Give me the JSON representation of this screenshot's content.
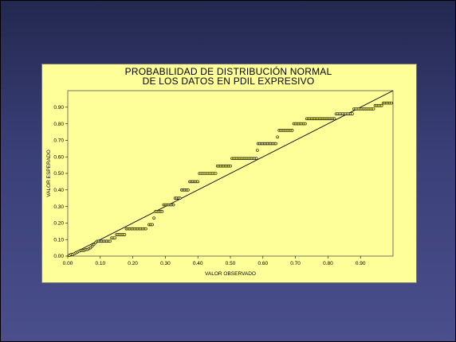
{
  "chart_data": {
    "type": "scatter",
    "title": "PROBABILIDAD DE DISTRIBUCIÓN NORMAL",
    "subtitle": "DE LOS DATOS EN PDIL EXPRESIVO",
    "xlabel": "VALOR OBSERVADO",
    "ylabel": "VALOR ESPERADO",
    "xlim": [
      0,
      1
    ],
    "ylim": [
      0,
      1
    ],
    "x_ticks": [
      "0.00",
      "0.10",
      "0.20",
      "0.30",
      "0.40",
      "0.50",
      "0.60",
      "0.70",
      "0.80",
      "0.90"
    ],
    "y_ticks": [
      "0.00",
      "0.10",
      "0.20",
      "0.30",
      "0.40",
      "0.50",
      "0.60",
      "0.70",
      "0.80",
      "0.90"
    ],
    "reference_line": {
      "from": [
        0,
        0
      ],
      "to": [
        1,
        1
      ]
    },
    "grid": false,
    "marker_color": "#ffff66",
    "background_color": "#ffff99",
    "points": [
      [
        0.005,
        0.005
      ],
      [
        0.01,
        0.01
      ],
      [
        0.015,
        0.01
      ],
      [
        0.02,
        0.015
      ],
      [
        0.025,
        0.02
      ],
      [
        0.03,
        0.025
      ],
      [
        0.035,
        0.03
      ],
      [
        0.04,
        0.035
      ],
      [
        0.045,
        0.035
      ],
      [
        0.05,
        0.035
      ],
      [
        0.055,
        0.04
      ],
      [
        0.06,
        0.04
      ],
      [
        0.065,
        0.045
      ],
      [
        0.07,
        0.05
      ],
      [
        0.075,
        0.06
      ],
      [
        0.08,
        0.07
      ],
      [
        0.085,
        0.08
      ],
      [
        0.09,
        0.09
      ],
      [
        0.095,
        0.09
      ],
      [
        0.1,
        0.09
      ],
      [
        0.105,
        0.09
      ],
      [
        0.11,
        0.09
      ],
      [
        0.115,
        0.09
      ],
      [
        0.12,
        0.09
      ],
      [
        0.125,
        0.09
      ],
      [
        0.13,
        0.09
      ],
      [
        0.135,
        0.11
      ],
      [
        0.14,
        0.11
      ],
      [
        0.145,
        0.11
      ],
      [
        0.15,
        0.13
      ],
      [
        0.155,
        0.13
      ],
      [
        0.16,
        0.13
      ],
      [
        0.165,
        0.13
      ],
      [
        0.17,
        0.13
      ],
      [
        0.175,
        0.13
      ],
      [
        0.18,
        0.165
      ],
      [
        0.185,
        0.165
      ],
      [
        0.19,
        0.165
      ],
      [
        0.195,
        0.165
      ],
      [
        0.2,
        0.165
      ],
      [
        0.205,
        0.165
      ],
      [
        0.21,
        0.165
      ],
      [
        0.215,
        0.165
      ],
      [
        0.22,
        0.165
      ],
      [
        0.225,
        0.165
      ],
      [
        0.23,
        0.165
      ],
      [
        0.235,
        0.165
      ],
      [
        0.24,
        0.165
      ],
      [
        0.25,
        0.19
      ],
      [
        0.255,
        0.19
      ],
      [
        0.26,
        0.19
      ],
      [
        0.265,
        0.23
      ],
      [
        0.27,
        0.27
      ],
      [
        0.275,
        0.27
      ],
      [
        0.28,
        0.27
      ],
      [
        0.285,
        0.27
      ],
      [
        0.29,
        0.27
      ],
      [
        0.295,
        0.31
      ],
      [
        0.3,
        0.31
      ],
      [
        0.305,
        0.31
      ],
      [
        0.31,
        0.31
      ],
      [
        0.315,
        0.31
      ],
      [
        0.32,
        0.31
      ],
      [
        0.325,
        0.31
      ],
      [
        0.33,
        0.35
      ],
      [
        0.335,
        0.35
      ],
      [
        0.34,
        0.35
      ],
      [
        0.345,
        0.35
      ],
      [
        0.35,
        0.4
      ],
      [
        0.355,
        0.4
      ],
      [
        0.36,
        0.4
      ],
      [
        0.365,
        0.4
      ],
      [
        0.37,
        0.4
      ],
      [
        0.375,
        0.45
      ],
      [
        0.38,
        0.45
      ],
      [
        0.385,
        0.45
      ],
      [
        0.39,
        0.45
      ],
      [
        0.395,
        0.45
      ],
      [
        0.4,
        0.45
      ],
      [
        0.405,
        0.5
      ],
      [
        0.41,
        0.5
      ],
      [
        0.415,
        0.5
      ],
      [
        0.42,
        0.5
      ],
      [
        0.425,
        0.5
      ],
      [
        0.43,
        0.5
      ],
      [
        0.435,
        0.5
      ],
      [
        0.44,
        0.5
      ],
      [
        0.445,
        0.5
      ],
      [
        0.45,
        0.5
      ],
      [
        0.455,
        0.5
      ],
      [
        0.46,
        0.545
      ],
      [
        0.465,
        0.545
      ],
      [
        0.47,
        0.545
      ],
      [
        0.475,
        0.545
      ],
      [
        0.48,
        0.545
      ],
      [
        0.485,
        0.545
      ],
      [
        0.49,
        0.545
      ],
      [
        0.495,
        0.545
      ],
      [
        0.5,
        0.545
      ],
      [
        0.505,
        0.59
      ],
      [
        0.51,
        0.59
      ],
      [
        0.515,
        0.59
      ],
      [
        0.52,
        0.59
      ],
      [
        0.525,
        0.59
      ],
      [
        0.53,
        0.59
      ],
      [
        0.535,
        0.59
      ],
      [
        0.54,
        0.59
      ],
      [
        0.545,
        0.59
      ],
      [
        0.55,
        0.59
      ],
      [
        0.555,
        0.59
      ],
      [
        0.56,
        0.59
      ],
      [
        0.565,
        0.59
      ],
      [
        0.57,
        0.59
      ],
      [
        0.575,
        0.59
      ],
      [
        0.58,
        0.59
      ],
      [
        0.583,
        0.64
      ],
      [
        0.585,
        0.68
      ],
      [
        0.59,
        0.68
      ],
      [
        0.595,
        0.68
      ],
      [
        0.6,
        0.68
      ],
      [
        0.605,
        0.68
      ],
      [
        0.61,
        0.68
      ],
      [
        0.615,
        0.68
      ],
      [
        0.62,
        0.68
      ],
      [
        0.625,
        0.68
      ],
      [
        0.63,
        0.68
      ],
      [
        0.635,
        0.68
      ],
      [
        0.64,
        0.68
      ],
      [
        0.645,
        0.72
      ],
      [
        0.65,
        0.76
      ],
      [
        0.655,
        0.76
      ],
      [
        0.66,
        0.76
      ],
      [
        0.665,
        0.76
      ],
      [
        0.67,
        0.76
      ],
      [
        0.675,
        0.76
      ],
      [
        0.68,
        0.76
      ],
      [
        0.685,
        0.76
      ],
      [
        0.69,
        0.76
      ],
      [
        0.695,
        0.8
      ],
      [
        0.7,
        0.8
      ],
      [
        0.705,
        0.8
      ],
      [
        0.71,
        0.8
      ],
      [
        0.715,
        0.8
      ],
      [
        0.72,
        0.8
      ],
      [
        0.725,
        0.8
      ],
      [
        0.73,
        0.8
      ],
      [
        0.735,
        0.83
      ],
      [
        0.74,
        0.83
      ],
      [
        0.745,
        0.83
      ],
      [
        0.75,
        0.83
      ],
      [
        0.755,
        0.83
      ],
      [
        0.76,
        0.83
      ],
      [
        0.765,
        0.83
      ],
      [
        0.77,
        0.83
      ],
      [
        0.775,
        0.83
      ],
      [
        0.78,
        0.83
      ],
      [
        0.785,
        0.83
      ],
      [
        0.79,
        0.83
      ],
      [
        0.795,
        0.83
      ],
      [
        0.8,
        0.83
      ],
      [
        0.805,
        0.83
      ],
      [
        0.81,
        0.83
      ],
      [
        0.815,
        0.83
      ],
      [
        0.82,
        0.83
      ],
      [
        0.825,
        0.86
      ],
      [
        0.83,
        0.86
      ],
      [
        0.835,
        0.86
      ],
      [
        0.84,
        0.86
      ],
      [
        0.845,
        0.86
      ],
      [
        0.85,
        0.86
      ],
      [
        0.855,
        0.86
      ],
      [
        0.86,
        0.86
      ],
      [
        0.865,
        0.86
      ],
      [
        0.87,
        0.86
      ],
      [
        0.875,
        0.86
      ],
      [
        0.88,
        0.89
      ],
      [
        0.885,
        0.89
      ],
      [
        0.89,
        0.89
      ],
      [
        0.895,
        0.89
      ],
      [
        0.9,
        0.89
      ],
      [
        0.905,
        0.89
      ],
      [
        0.91,
        0.89
      ],
      [
        0.915,
        0.89
      ],
      [
        0.92,
        0.89
      ],
      [
        0.925,
        0.89
      ],
      [
        0.93,
        0.89
      ],
      [
        0.935,
        0.89
      ],
      [
        0.94,
        0.89
      ],
      [
        0.945,
        0.91
      ],
      [
        0.95,
        0.91
      ],
      [
        0.955,
        0.91
      ],
      [
        0.96,
        0.91
      ],
      [
        0.965,
        0.91
      ],
      [
        0.97,
        0.925
      ],
      [
        0.975,
        0.925
      ],
      [
        0.98,
        0.925
      ],
      [
        0.985,
        0.925
      ],
      [
        0.99,
        0.925
      ],
      [
        0.995,
        0.925
      ]
    ]
  }
}
